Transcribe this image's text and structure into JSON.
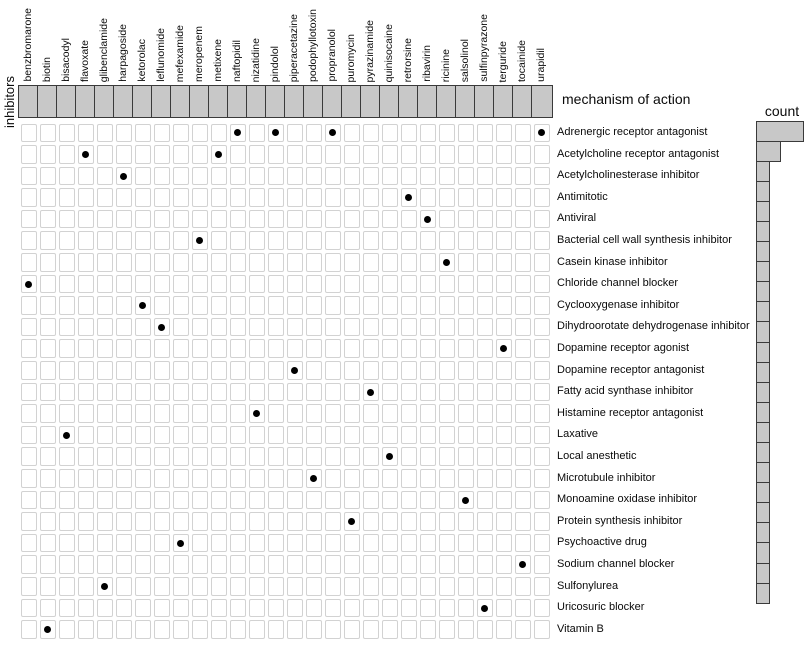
{
  "chart_data": {
    "type": "heatmap",
    "subtype": "binary dot matrix with marginal count bar chart",
    "columns_axis_label": "inhibitors",
    "rows_axis_label": "mechanism of action",
    "marginal_axis_label": "count",
    "legend_position": "none",
    "grid": true,
    "columns": [
      "benzbromarone",
      "biotin",
      "bisacodyl",
      "flavoxate",
      "glibenclamide",
      "harpagoside",
      "ketorolac",
      "leflunomide",
      "mefexamide",
      "meropenem",
      "metixene",
      "naftopidil",
      "nizatidine",
      "pindolol",
      "piperacetazine",
      "podophyllotoxin",
      "propranolol",
      "puromycin",
      "pyrazinamide",
      "quinisocaine",
      "retrorsine",
      "ribavirin",
      "ricinine",
      "salsolinol",
      "sulfinpyrazone",
      "terguride",
      "tocainide",
      "urapidil"
    ],
    "rows": [
      "Adrenergic receptor antagonist",
      "Acetylcholine receptor antagonist",
      "Acetylcholinesterase inhibitor",
      "Antimitotic",
      "Antiviral",
      "Bacterial cell wall synthesis inhibitor",
      "Casein kinase inhibitor",
      "Chloride channel blocker",
      "Cyclooxygenase inhibitor",
      "Dihydroorotate dehydrogenase inhibitor",
      "Dopamine receptor agonist",
      "Dopamine receptor antagonist",
      "Fatty acid synthase inhibitor",
      "Histamine receptor antagonist",
      "Laxative",
      "Local anesthetic",
      "Microtubule inhibitor",
      "Monoamine oxidase inhibitor",
      "Protein synthesis inhibitor",
      "Psychoactive drug",
      "Sodium channel blocker",
      "Sulfonylurea",
      "Uricosuric blocker",
      "Vitamin B"
    ],
    "dots": [
      {
        "inhibitor": "naftopidil",
        "mechanism": "Adrenergic receptor antagonist"
      },
      {
        "inhibitor": "pindolol",
        "mechanism": "Adrenergic receptor antagonist"
      },
      {
        "inhibitor": "propranolol",
        "mechanism": "Adrenergic receptor antagonist"
      },
      {
        "inhibitor": "urapidil",
        "mechanism": "Adrenergic receptor antagonist"
      },
      {
        "inhibitor": "flavoxate",
        "mechanism": "Acetylcholine receptor antagonist"
      },
      {
        "inhibitor": "metixene",
        "mechanism": "Acetylcholine receptor antagonist"
      },
      {
        "inhibitor": "harpagoside",
        "mechanism": "Acetylcholinesterase inhibitor"
      },
      {
        "inhibitor": "retrorsine",
        "mechanism": "Antimitotic"
      },
      {
        "inhibitor": "ribavirin",
        "mechanism": "Antiviral"
      },
      {
        "inhibitor": "meropenem",
        "mechanism": "Bacterial cell wall synthesis inhibitor"
      },
      {
        "inhibitor": "ricinine",
        "mechanism": "Casein kinase inhibitor"
      },
      {
        "inhibitor": "benzbromarone",
        "mechanism": "Chloride channel blocker"
      },
      {
        "inhibitor": "ketorolac",
        "mechanism": "Cyclooxygenase inhibitor"
      },
      {
        "inhibitor": "leflunomide",
        "mechanism": "Dihydroorotate dehydrogenase inhibitor"
      },
      {
        "inhibitor": "terguride",
        "mechanism": "Dopamine receptor agonist"
      },
      {
        "inhibitor": "piperacetazine",
        "mechanism": "Dopamine receptor antagonist"
      },
      {
        "inhibitor": "pyrazinamide",
        "mechanism": "Fatty acid synthase inhibitor"
      },
      {
        "inhibitor": "nizatidine",
        "mechanism": "Histamine receptor antagonist"
      },
      {
        "inhibitor": "bisacodyl",
        "mechanism": "Laxative"
      },
      {
        "inhibitor": "quinisocaine",
        "mechanism": "Local anesthetic"
      },
      {
        "inhibitor": "podophyllotoxin",
        "mechanism": "Microtubule inhibitor"
      },
      {
        "inhibitor": "salsolinol",
        "mechanism": "Monoamine oxidase inhibitor"
      },
      {
        "inhibitor": "puromycin",
        "mechanism": "Protein synthesis inhibitor"
      },
      {
        "inhibitor": "mefexamide",
        "mechanism": "Psychoactive drug"
      },
      {
        "inhibitor": "tocainide",
        "mechanism": "Sodium channel blocker"
      },
      {
        "inhibitor": "glibenclamide",
        "mechanism": "Sulfonylurea"
      },
      {
        "inhibitor": "sulfinpyrazone",
        "mechanism": "Uricosuric blocker"
      },
      {
        "inhibitor": "biotin",
        "mechanism": "Vitamin B"
      }
    ],
    "counts": [
      4,
      2,
      1,
      1,
      1,
      1,
      1,
      1,
      1,
      1,
      1,
      1,
      1,
      1,
      1,
      1,
      1,
      1,
      1,
      1,
      1,
      1,
      1,
      1
    ],
    "count_axis_range": [
      0,
      4
    ],
    "colors": {
      "box_fill": "#c8c8c8",
      "box_border": "#3a3a3a",
      "cell_border": "#d2d2d2",
      "dot": "#000000",
      "background": "#ffffff",
      "text": "#0a0a0a"
    }
  }
}
